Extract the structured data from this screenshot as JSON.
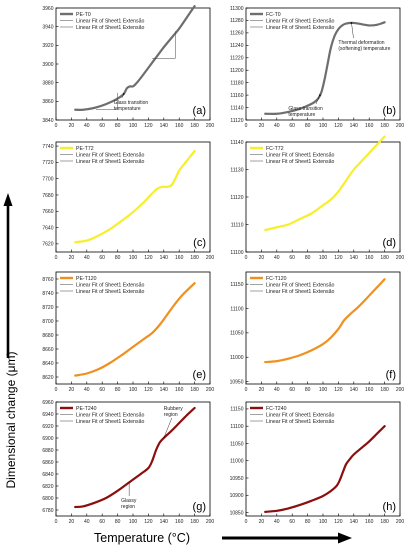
{
  "figure": {
    "ylabel": "Dimensional change (μm)",
    "xlabel": "Temperature (°C)"
  },
  "chart_data": [
    {
      "type": "line",
      "panel": "a",
      "letter": "(a)",
      "color": "#6e6e6e",
      "xlim": [
        0,
        200
      ],
      "ylim": [
        3840,
        3960
      ],
      "xticks": [
        0,
        20,
        40,
        60,
        80,
        100,
        120,
        140,
        160,
        180,
        200
      ],
      "yticks": [
        3840,
        3860,
        3880,
        3900,
        3920,
        3940,
        3960
      ],
      "legend": [
        "PE-T0",
        "Linear Fit of Sheet1 Extensão",
        "Linear Fit of Sheet1 Extensão"
      ],
      "annotations": [
        "Glass transition temperature"
      ],
      "series": [
        {
          "name": "PE-T0",
          "x": [
            25,
            35,
            50,
            65,
            80,
            88,
            92,
            96,
            100,
            104,
            110,
            120,
            130,
            140,
            150,
            160,
            170,
            180
          ],
          "y": [
            3851,
            3851,
            3853,
            3857,
            3863,
            3868,
            3874,
            3876,
            3876,
            3879,
            3885,
            3896,
            3907,
            3918,
            3928,
            3938,
            3950,
            3962
          ]
        }
      ]
    },
    {
      "type": "line",
      "panel": "b",
      "letter": "(b)",
      "color": "#6e6e6e",
      "xlim": [
        0,
        200
      ],
      "ylim": [
        11120,
        11300
      ],
      "xticks": [
        0,
        20,
        40,
        60,
        80,
        100,
        120,
        140,
        160,
        180,
        200
      ],
      "yticks": [
        11120,
        11140,
        11160,
        11180,
        11200,
        11220,
        11240,
        11260,
        11280,
        11300
      ],
      "legend": [
        "FC-T0",
        "Linear Fit of Sheet1 Extensão",
        "Linear Fit of Sheet1 Extensão"
      ],
      "annotations": [
        "Glass transition temperature",
        "Thermal deformation (softening) temperature"
      ],
      "series": [
        {
          "name": "FC-T0",
          "x": [
            25,
            40,
            55,
            70,
            80,
            88,
            94,
            98,
            102,
            106,
            110,
            115,
            120,
            125,
            130,
            140,
            150,
            160,
            170,
            180
          ],
          "y": [
            11130,
            11130,
            11133,
            11138,
            11143,
            11148,
            11155,
            11165,
            11185,
            11210,
            11235,
            11255,
            11266,
            11272,
            11275,
            11276,
            11274,
            11272,
            11273,
            11277
          ]
        }
      ]
    },
    {
      "type": "line",
      "panel": "c",
      "letter": "(c)",
      "color": "#f5ef2c",
      "xlim": [
        0,
        200
      ],
      "ylim": [
        7610,
        7745
      ],
      "xticks": [
        0,
        20,
        40,
        60,
        80,
        100,
        120,
        140,
        160,
        180,
        200
      ],
      "yticks": [
        7620,
        7640,
        7660,
        7680,
        7700,
        7720,
        7740
      ],
      "legend": [
        "PE-T72",
        "Linear Fit of Sheet1 Extensão",
        "Linear Fit of Sheet1 Extensão"
      ],
      "annotations": [],
      "series": [
        {
          "name": "PE-T72",
          "x": [
            25,
            40,
            55,
            70,
            85,
            100,
            115,
            125,
            132,
            138,
            145,
            150,
            155,
            160,
            170,
            180
          ],
          "y": [
            7622,
            7624,
            7630,
            7638,
            7648,
            7659,
            7672,
            7682,
            7688,
            7690,
            7690,
            7692,
            7700,
            7710,
            7722,
            7734
          ]
        }
      ]
    },
    {
      "type": "line",
      "panel": "d",
      "letter": "(d)",
      "color": "#f5ef2c",
      "xlim": [
        0,
        200
      ],
      "ylim": [
        11100,
        11140
      ],
      "xticks": [
        0,
        20,
        40,
        60,
        80,
        100,
        120,
        140,
        160,
        180,
        200
      ],
      "yticks": [
        11100,
        11110,
        11120,
        11130,
        11140
      ],
      "legend": [
        "FC-T72",
        "Linear Fit of Sheet1 Extensão",
        "Linear Fit of Sheet1 Extensão"
      ],
      "annotations": [],
      "series": [
        {
          "name": "FC-T72",
          "x": [
            25,
            40,
            55,
            70,
            85,
            100,
            110,
            120,
            130,
            140,
            150,
            160,
            170,
            180
          ],
          "y": [
            11108,
            11109,
            11110,
            11112,
            11114,
            11117,
            11119,
            11122,
            11126,
            11130,
            11133,
            11136,
            11139,
            11142
          ]
        }
      ]
    },
    {
      "type": "line",
      "panel": "e",
      "letter": "(e)",
      "color": "#f0901e",
      "xlim": [
        0,
        200
      ],
      "ylim": [
        8610,
        8770
      ],
      "xticks": [
        0,
        20,
        40,
        60,
        80,
        100,
        120,
        140,
        160,
        180,
        200
      ],
      "yticks": [
        8620,
        8640,
        8660,
        8680,
        8700,
        8720,
        8740,
        8760
      ],
      "legend": [
        "PE-T120",
        "Linear Fit of Sheet1 Extensão",
        "Linear Fit of Sheet1 Extensão"
      ],
      "annotations": [],
      "series": [
        {
          "name": "PE-T120",
          "x": [
            25,
            40,
            55,
            70,
            85,
            100,
            115,
            125,
            135,
            145,
            155,
            165,
            180
          ],
          "y": [
            8622,
            8625,
            8631,
            8640,
            8651,
            8663,
            8675,
            8683,
            8695,
            8710,
            8725,
            8738,
            8754
          ]
        }
      ]
    },
    {
      "type": "line",
      "panel": "f",
      "letter": "(f)",
      "color": "#f0901e",
      "xlim": [
        0,
        200
      ],
      "ylim": [
        10945,
        11175
      ],
      "xticks": [
        0,
        20,
        40,
        60,
        80,
        100,
        120,
        140,
        160,
        180,
        200
      ],
      "yticks": [
        10950,
        11000,
        11050,
        11100,
        11150
      ],
      "legend": [
        "FC-T120",
        "Linear Fit of Sheet1 Extensão",
        "Linear Fit of Sheet1 Extensão"
      ],
      "annotations": [],
      "series": [
        {
          "name": "FC-T120",
          "x": [
            25,
            40,
            55,
            70,
            85,
            100,
            110,
            120,
            127,
            135,
            145,
            155,
            165,
            180
          ],
          "y": [
            10990,
            10992,
            10997,
            11004,
            11014,
            11027,
            11040,
            11058,
            11075,
            11088,
            11102,
            11118,
            11135,
            11160
          ]
        }
      ]
    },
    {
      "type": "line",
      "panel": "g",
      "letter": "(g)",
      "color": "#8a0f0f",
      "xlim": [
        0,
        200
      ],
      "ylim": [
        6770,
        6960
      ],
      "xticks": [
        0,
        20,
        40,
        60,
        80,
        100,
        120,
        140,
        160,
        180,
        200
      ],
      "yticks": [
        6780,
        6800,
        6820,
        6840,
        6860,
        6880,
        6900,
        6920,
        6940,
        6960
      ],
      "legend": [
        "PE-T240",
        "Linear Fit of Sheet1 Extensão",
        "Linear Fit of Sheet1 Extensão"
      ],
      "annotations": [
        "Rubbery region",
        "Glassy region"
      ],
      "series": [
        {
          "name": "PE-T240",
          "x": [
            25,
            35,
            50,
            65,
            80,
            95,
            110,
            120,
            125,
            130,
            135,
            140,
            150,
            160,
            170,
            180
          ],
          "y": [
            6785,
            6786,
            6792,
            6800,
            6812,
            6826,
            6840,
            6850,
            6862,
            6880,
            6893,
            6900,
            6912,
            6925,
            6938,
            6950
          ]
        }
      ]
    },
    {
      "type": "line",
      "panel": "h",
      "letter": "(h)",
      "color": "#8a0f0f",
      "xlim": [
        0,
        200
      ],
      "ylim": [
        10840,
        11170
      ],
      "xticks": [
        0,
        20,
        40,
        60,
        80,
        100,
        120,
        140,
        160,
        180,
        200
      ],
      "yticks": [
        10850,
        10900,
        10950,
        11000,
        11050,
        11100,
        11150
      ],
      "legend": [
        "FC-T240",
        "Linear Fit of Sheet1 Extensão",
        "Linear Fit of Sheet1 Extensão"
      ],
      "annotations": [],
      "series": [
        {
          "name": "FC-T240",
          "x": [
            25,
            40,
            55,
            70,
            85,
            100,
            110,
            118,
            122,
            126,
            130,
            135,
            140,
            150,
            160,
            170,
            180
          ],
          "y": [
            10852,
            10855,
            10862,
            10872,
            10884,
            10898,
            10912,
            10928,
            10945,
            10968,
            10990,
            11005,
            11018,
            11037,
            11056,
            11078,
            11100
          ]
        }
      ]
    }
  ]
}
